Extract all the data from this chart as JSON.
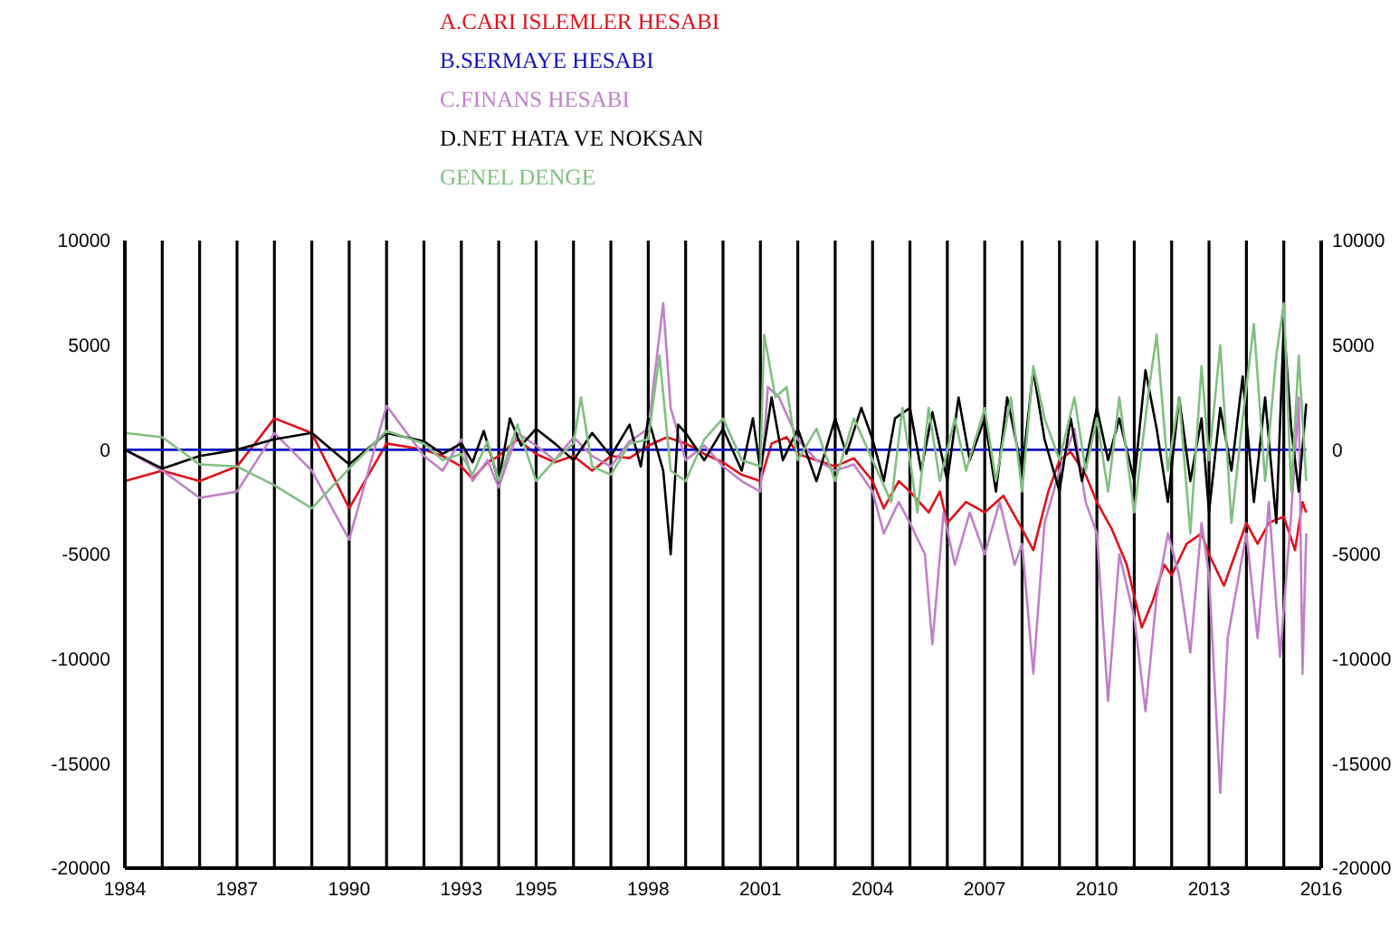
{
  "chart_data": {
    "type": "line",
    "legend": "top",
    "grid": "x",
    "xlim": [
      1984,
      2016
    ],
    "ylim": [
      -20000,
      10000
    ],
    "y2lim": [
      -20000,
      10000
    ],
    "xticks": [
      1984,
      {
        "value": 1985,
        "label": null
      },
      {
        "value": 1986,
        "label": null
      },
      1987,
      {
        "value": 1988,
        "label": null
      },
      {
        "value": 1989,
        "label": null
      },
      1990,
      {
        "value": 1991,
        "label": null
      },
      {
        "value": 1992,
        "label": null
      },
      1993,
      {
        "value": 1994,
        "label": null
      },
      1995,
      {
        "value": 1996,
        "label": null
      },
      {
        "value": 1997,
        "label": null
      },
      1998,
      {
        "value": 1999,
        "label": null
      },
      {
        "value": 2000,
        "label": null
      },
      2001,
      {
        "value": 2002,
        "label": null
      },
      {
        "value": 2003,
        "label": null
      },
      2004,
      {
        "value": 2005,
        "label": null
      },
      {
        "value": 2006,
        "label": null
      },
      2007,
      {
        "value": 2008,
        "label": null
      },
      {
        "value": 2009,
        "label": null
      },
      2010,
      {
        "value": 2011,
        "label": null
      },
      {
        "value": 2012,
        "label": null
      },
      2013,
      {
        "value": 2014,
        "label": null
      },
      {
        "value": 2015,
        "label": null
      },
      2016
    ],
    "yticks": [
      -20000,
      -15000,
      -10000,
      -5000,
      0,
      5000,
      10000
    ],
    "y2ticks": [
      -20000,
      -15000,
      -10000,
      -5000,
      0,
      5000,
      10000
    ],
    "series": [
      {
        "name": "A.CARI ISLEMLER HESABI",
        "color": "#e0101a",
        "x": [
          1984,
          1985,
          1986,
          1987,
          1988,
          1989,
          1990,
          1991,
          1992.0,
          1992.5,
          1993.0,
          1993.3,
          1993.7,
          1994.0,
          1994.5,
          1995.0,
          1995.5,
          1996.0,
          1996.5,
          1997.0,
          1997.5,
          1998.0,
          1998.5,
          1999.0,
          1999.5,
          2000.0,
          2000.5,
          2001.0,
          2001.3,
          2001.7,
          2002.0,
          2002.5,
          2003.0,
          2003.5,
          2004.0,
          2004.3,
          2004.7,
          2005.0,
          2005.5,
          2005.8,
          2006.0,
          2006.5,
          2007.0,
          2007.5,
          2008.0,
          2008.3,
          2008.7,
          2009.0,
          2009.3,
          2009.7,
          2010.0,
          2010.4,
          2010.8,
          2011.0,
          2011.2,
          2011.5,
          2011.8,
          2012.0,
          2012.4,
          2012.8,
          2013.0,
          2013.4,
          2013.7,
          2014.0,
          2014.3,
          2014.6,
          2015.0,
          2015.3,
          2015.5,
          2015.6
        ],
        "values": [
          -1500,
          -1000,
          -1500,
          -800,
          1500,
          800,
          -2800,
          300,
          0,
          -300,
          -800,
          -1400,
          -600,
          -300,
          500,
          -200,
          -600,
          -300,
          -1000,
          -300,
          -400,
          200,
          600,
          300,
          -200,
          -600,
          -1200,
          -1500,
          300,
          600,
          -200,
          -500,
          -800,
          -400,
          -1500,
          -2800,
          -1500,
          -2000,
          -3000,
          -2000,
          -3500,
          -2500,
          -3000,
          -2200,
          -3800,
          -4800,
          -2000,
          -500,
          -100,
          -1200,
          -2500,
          -3800,
          -5500,
          -7000,
          -8500,
          -7200,
          -5500,
          -6000,
          -4500,
          -4000,
          -5000,
          -6500,
          -5000,
          -3500,
          -4500,
          -3500,
          -3200,
          -4800,
          -2500,
          -3000
        ]
      },
      {
        "name": "B.SERMAYE HESABI",
        "color": "#1010c0",
        "x": [
          1984,
          1985,
          1986,
          1987,
          1988,
          1989,
          1990,
          1991,
          1992,
          2000,
          2008,
          2015.6
        ],
        "values": [
          0,
          0,
          0,
          0,
          0,
          0,
          0,
          0,
          0,
          0,
          0,
          0
        ]
      },
      {
        "name": "C.FINANS HESABI",
        "color": "#c080c8",
        "x": [
          1984,
          1985,
          1986,
          1987,
          1988,
          1989,
          1990,
          1991,
          1992.0,
          1992.5,
          1993.0,
          1993.3,
          1993.7,
          1994.0,
          1994.5,
          1995.0,
          1995.5,
          1996.0,
          1996.5,
          1997.0,
          1997.5,
          1998.0,
          1998.4,
          1998.6,
          1999.0,
          1999.5,
          2000.0,
          2000.5,
          2001.0,
          2001.2,
          2001.5,
          2002.0,
          2002.5,
          2003.0,
          2003.5,
          2004.0,
          2004.3,
          2004.7,
          2005.0,
          2005.4,
          2005.6,
          2005.9,
          2006.2,
          2006.6,
          2007.0,
          2007.4,
          2007.8,
          2008.0,
          2008.3,
          2008.6,
          2009.0,
          2009.4,
          2009.7,
          2010.0,
          2010.3,
          2010.6,
          2011.0,
          2011.3,
          2011.6,
          2011.9,
          2012.2,
          2012.5,
          2012.8,
          2013.0,
          2013.3,
          2013.5,
          2013.8,
          2014.0,
          2014.3,
          2014.6,
          2014.9,
          2015.2,
          2015.4,
          2015.5,
          2015.6
        ],
        "values": [
          0,
          -1000,
          -2300,
          -2000,
          800,
          -1000,
          -4300,
          2100,
          -300,
          -1000,
          500,
          -1500,
          -500,
          -1800,
          800,
          200,
          -500,
          600,
          -300,
          -800,
          400,
          1000,
          7000,
          2000,
          -500,
          200,
          -800,
          -1500,
          -2000,
          3000,
          2500,
          500,
          -500,
          -1000,
          -700,
          -2000,
          -4000,
          -2500,
          -3500,
          -5000,
          -9300,
          -3000,
          -5500,
          -3000,
          -5000,
          -2500,
          -5500,
          -4500,
          -10700,
          -3500,
          -1000,
          1000,
          -2500,
          -4000,
          -12000,
          -5000,
          -8000,
          -12500,
          -7000,
          -4000,
          -6000,
          -9700,
          -3500,
          -6000,
          -16400,
          -9000,
          -6000,
          -4000,
          -9000,
          -2500,
          -9900,
          -3000,
          2500,
          -10700,
          -4000
        ]
      },
      {
        "name": "D.NET HATA VE NOKSAN",
        "color": "#000000",
        "x": [
          1984,
          1985,
          1986,
          1987,
          1988,
          1989,
          1990,
          1991,
          1992.0,
          1992.5,
          1993.0,
          1993.3,
          1993.6,
          1994.0,
          1994.3,
          1994.6,
          1995.0,
          1995.5,
          1996.0,
          1996.5,
          1997.0,
          1997.5,
          1997.8,
          1998.0,
          1998.4,
          1998.6,
          1998.8,
          1999.0,
          1999.5,
          2000.0,
          2000.5,
          2000.8,
          2001.0,
          2001.3,
          2001.6,
          2002.0,
          2002.5,
          2003.0,
          2003.3,
          2003.7,
          2004.0,
          2004.3,
          2004.6,
          2005.0,
          2005.3,
          2005.6,
          2006.0,
          2006.3,
          2006.6,
          2007.0,
          2007.3,
          2007.6,
          2008.0,
          2008.3,
          2008.6,
          2009.0,
          2009.3,
          2009.6,
          2010.0,
          2010.3,
          2010.6,
          2011.0,
          2011.3,
          2011.6,
          2011.9,
          2012.2,
          2012.5,
          2012.8,
          2013.0,
          2013.3,
          2013.6,
          2013.9,
          2014.2,
          2014.5,
          2014.8,
          2015.0,
          2015.2,
          2015.4,
          2015.6
        ],
        "values": [
          0,
          -900,
          -300,
          0,
          500,
          800,
          -700,
          800,
          400,
          -200,
          300,
          -600,
          900,
          -1500,
          1500,
          200,
          1000,
          300,
          -500,
          800,
          -300,
          1200,
          -800,
          1500,
          -1000,
          -5000,
          1200,
          800,
          -500,
          1000,
          -1000,
          1500,
          -1000,
          2500,
          -500,
          1000,
          -1500,
          1500,
          -200,
          2000,
          500,
          -1500,
          1500,
          2000,
          -1000,
          1800,
          -1500,
          2500,
          -500,
          1500,
          -2000,
          2500,
          -1000,
          3800,
          500,
          -2000,
          1500,
          -1500,
          2000,
          -500,
          1500,
          -1500,
          3800,
          1000,
          -2500,
          2500,
          -1500,
          1500,
          -3000,
          2000,
          -1000,
          3500,
          -2500,
          2500,
          -3500,
          6000,
          1000,
          -2000,
          2200
        ]
      },
      {
        "name": "GENEL DENGE",
        "color": "#80c080",
        "x": [
          1984,
          1985,
          1986,
          1987,
          1988,
          1989,
          1990,
          1991,
          1992.0,
          1992.5,
          1993.0,
          1993.3,
          1993.7,
          1994.0,
          1994.5,
          1995.0,
          1995.5,
          1996.0,
          1996.2,
          1996.5,
          1997.0,
          1997.5,
          1998.0,
          1998.3,
          1998.6,
          1999.0,
          1999.5,
          2000.0,
          2000.5,
          2001.0,
          2001.1,
          2001.4,
          2001.7,
          2002.0,
          2002.5,
          2003.0,
          2003.5,
          2004.0,
          2004.5,
          2004.8,
          2005.2,
          2005.5,
          2005.8,
          2006.2,
          2006.5,
          2007.0,
          2007.3,
          2007.7,
          2008.0,
          2008.3,
          2008.6,
          2009.0,
          2009.4,
          2009.7,
          2010.0,
          2010.3,
          2010.6,
          2011.0,
          2011.4,
          2011.6,
          2011.9,
          2012.2,
          2012.5,
          2012.8,
          2013.0,
          2013.3,
          2013.6,
          2013.9,
          2014.2,
          2014.5,
          2014.8,
          2015.0,
          2015.2,
          2015.4,
          2015.6
        ],
        "values": [
          800,
          600,
          -700,
          -800,
          -1700,
          -2800,
          -900,
          900,
          300,
          -500,
          -200,
          -1200,
          400,
          -1500,
          1200,
          -1500,
          -500,
          300,
          2500,
          -800,
          -1200,
          300,
          500,
          4500,
          -1000,
          -1500,
          500,
          1500,
          -500,
          -800,
          5500,
          2500,
          3000,
          -500,
          1000,
          -1500,
          1500,
          -500,
          -2500,
          2000,
          -3000,
          2000,
          -1500,
          1500,
          -1000,
          2000,
          -1500,
          2500,
          -2000,
          4000,
          1500,
          -500,
          2500,
          -1000,
          1500,
          -2000,
          2500,
          -3000,
          3000,
          5500,
          -1000,
          2500,
          -4000,
          4000,
          -500,
          5000,
          -3500,
          1500,
          6000,
          -1500,
          4500,
          7000,
          -2000,
          4500,
          -1500
        ]
      }
    ]
  }
}
